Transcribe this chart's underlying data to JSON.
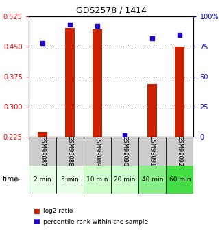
{
  "title": "GDS2578 / 1414",
  "samples": [
    "GSM99087",
    "GSM99088",
    "GSM99089",
    "GSM99090",
    "GSM99091",
    "GSM99092"
  ],
  "time_labels": [
    "2 min",
    "5 min",
    "10 min",
    "20 min",
    "40 min",
    "60 min"
  ],
  "log2_ratio": [
    0.237,
    0.497,
    0.493,
    0.225,
    0.356,
    0.451
  ],
  "percentile_rank": [
    78,
    93,
    92,
    1,
    82,
    85
  ],
  "ylim_left": [
    0.225,
    0.525
  ],
  "ylim_right": [
    0,
    100
  ],
  "yticks_left": [
    0.225,
    0.3,
    0.375,
    0.45,
    0.525
  ],
  "yticks_right": [
    0,
    25,
    50,
    75,
    100
  ],
  "bar_color": "#cc2200",
  "dot_color": "#2200cc",
  "bar_width": 0.35,
  "time_bg_colors": [
    "#e8ffe8",
    "#e8ffe8",
    "#ccffcc",
    "#ccffcc",
    "#88ee88",
    "#44dd44"
  ],
  "sample_bg_color": "#cccccc",
  "legend_labels": [
    "log2 ratio",
    "percentile rank within the sample"
  ]
}
